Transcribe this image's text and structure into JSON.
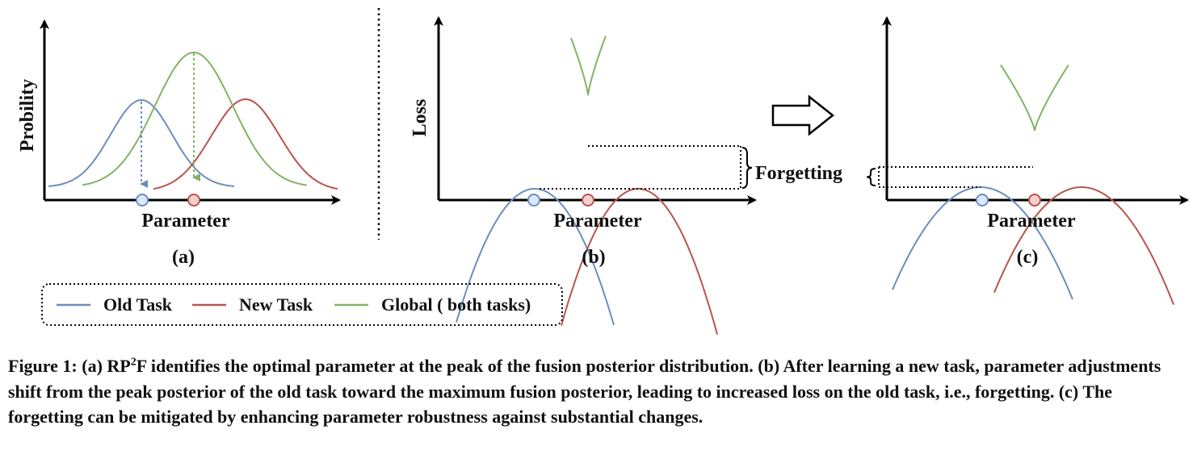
{
  "colors": {
    "old_task": "#6c8ebf",
    "new_task": "#b85450",
    "global": "#82b366",
    "old_dot_fill": "#dae8fc",
    "new_dot_fill": "#f8cecc",
    "axis": "#000000"
  },
  "panel_a": {
    "y_label": "Probility",
    "x_label": "Parameter",
    "sub_label": "(a)"
  },
  "panel_b": {
    "y_label": "Loss",
    "x_label": "Parameter",
    "sub_label": "(b)",
    "annotation": "Forgetting"
  },
  "panel_c": {
    "x_label": "Parameter",
    "sub_label": "(c)"
  },
  "arrow_icon": "right-hollow-arrow",
  "legend": {
    "items": [
      {
        "label": "Old Task",
        "color": "#6c8ebf"
      },
      {
        "label": "New Task",
        "color": "#b85450"
      },
      {
        "label": "Global ( both tasks)",
        "color": "#82b366"
      }
    ]
  },
  "caption": {
    "prefix": "Figure 1: (a) RP",
    "sup": "2",
    "rest": "F identifies the optimal parameter at the peak of the fusion posterior distribution. (b) After learning a new task, parameter adjustments shift from the peak posterior of the old task toward the maximum fusion posterior, leading to increased loss on the old task, i.e., forgetting. (c) The forgetting can be mitigated by enhancing parameter robustness against substantial changes."
  }
}
